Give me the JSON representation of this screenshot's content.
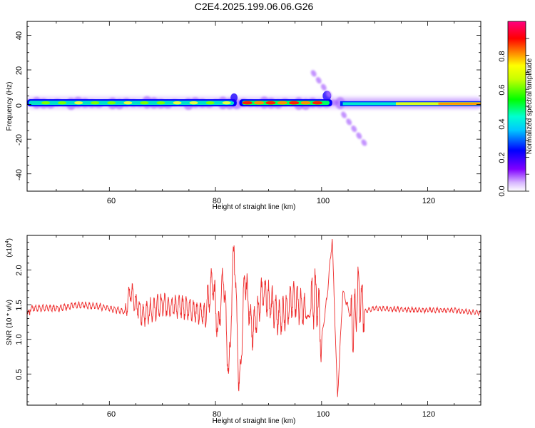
{
  "title": "C2E4.2025.199.06.06.G26",
  "colors": {
    "snr_line": "#ee2a2a",
    "ridge": "#12a5f0"
  },
  "spectrogram": {
    "xlabel": "Height of straight line (km)",
    "ylabel": "Frequency (Hz)",
    "xticks": [
      "60",
      "80",
      "100",
      "120"
    ],
    "yticks": [
      "40",
      "20",
      "0",
      "-20",
      "-40"
    ]
  },
  "colorbar": {
    "label": "Normalized spectral amplitude",
    "ticks": [
      "0.0",
      "0.2",
      "0.4",
      "0.6",
      "0.8"
    ],
    "colormap": [
      "#ffffff",
      "#8000ff",
      "#0000ff",
      "#00ffff",
      "#00ff00",
      "#ffff00",
      "#ff8000",
      "#ff0000",
      "#ff0080"
    ]
  },
  "snr_panel": {
    "xlabel": "Height of straight line (km)",
    "ylabel": "SNR (10 * v/v)",
    "multiplier_base": "(x10",
    "multiplier_exp": "4",
    "multiplier_close": ")",
    "xticks": [
      "60",
      "80",
      "100",
      "120"
    ],
    "yticks": [
      "0.5",
      "1.0",
      "1.5",
      "2.0"
    ]
  },
  "chart_data": [
    {
      "type": "heatmap",
      "x_range": [
        44.5,
        130
      ],
      "y_range": [
        -50,
        48
      ],
      "colorbar_range": [
        0,
        1
      ],
      "features": {
        "main_band": {
          "x": [
            44.5,
            84
          ],
          "frequency_hz": 1,
          "amplitude_approx": 0.35
        },
        "bright_band": {
          "x": [
            85,
            102
          ],
          "frequency_hz": 1,
          "amplitude_approx": 0.8
        },
        "late_band": {
          "x": [
            103,
            130
          ],
          "frequency_hz": 0.5,
          "amplitude_approx": 0.55
        },
        "dispersed_branch": {
          "x": [
            98.5,
            108
          ],
          "frequency_hz": [
            18,
            -22
          ]
        }
      }
    },
    {
      "type": "line",
      "name": "",
      "x_range": [
        44.5,
        130
      ],
      "y_range": [
        0.05,
        2.5
      ],
      "y_scale_factor": 10000,
      "x": [
        45,
        50,
        55,
        60,
        63,
        64,
        66,
        70,
        75,
        78,
        79.5,
        80.5,
        81.5,
        82.5,
        83.5,
        84.5,
        85.5,
        87,
        89,
        92,
        95,
        97.5,
        99,
        100,
        101,
        102,
        103,
        104,
        106,
        107,
        108,
        110,
        115,
        120,
        125,
        130
      ],
      "y": [
        1.45,
        1.45,
        1.5,
        1.45,
        1.4,
        1.7,
        1.35,
        1.5,
        1.45,
        1.35,
        1.85,
        1.1,
        2.0,
        0.4,
        2.45,
        0.2,
        1.9,
        1.1,
        1.7,
        1.3,
        1.6,
        1.3,
        1.7,
        1.0,
        1.6,
        2.45,
        0.15,
        1.7,
        1.2,
        1.7,
        1.4,
        1.45,
        1.43,
        1.42,
        1.42,
        1.38
      ]
    }
  ]
}
